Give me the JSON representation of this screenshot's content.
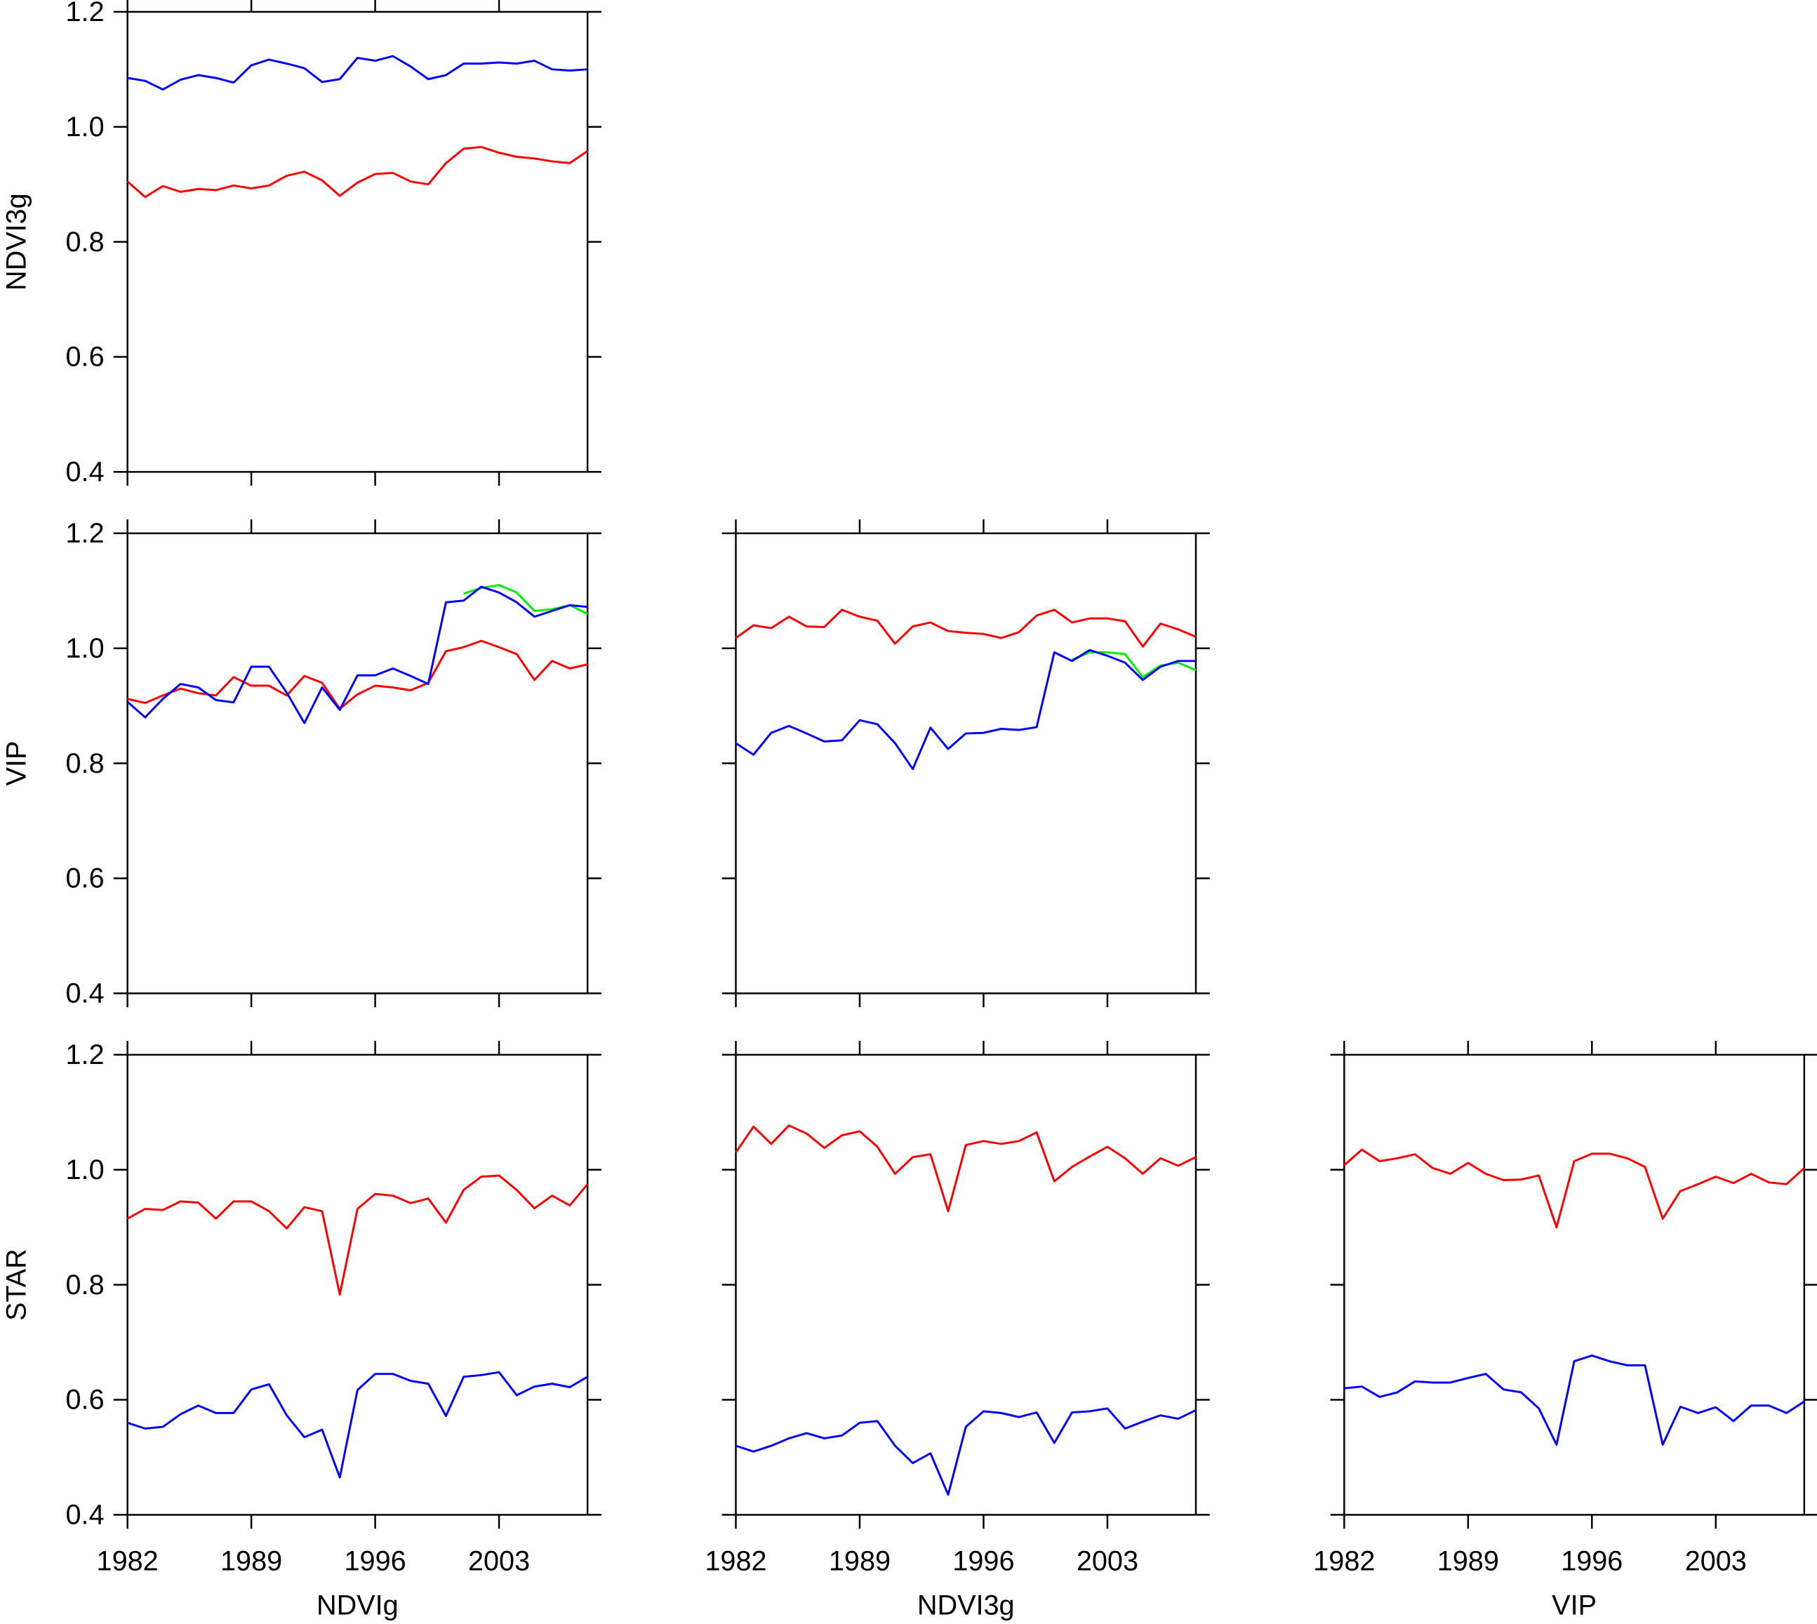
{
  "chart_data": [
    {
      "type": "line",
      "ylabel": "NDVI3g",
      "xtick_labels": false,
      "ytick_labels": true,
      "x": [
        1982,
        1983,
        1984,
        1985,
        1986,
        1987,
        1988,
        1989,
        1990,
        1991,
        1992,
        1993,
        1994,
        1995,
        1996,
        1997,
        1998,
        1999,
        2000,
        2001,
        2002,
        2003,
        2004,
        2005,
        2006,
        2007,
        2008
      ],
      "xlim": [
        1982,
        2008
      ],
      "xticks": [
        1982,
        1989,
        1996,
        2003
      ],
      "ylim": [
        0.4,
        1.2
      ],
      "yticks": [
        {
          "value": 0.4,
          "label": "0.4"
        },
        {
          "value": 0.6,
          "label": "0.6"
        },
        {
          "value": 0.8,
          "label": "0.8"
        },
        {
          "value": 1.0,
          "label": "1.0"
        },
        {
          "value": 1.2,
          "label": "1.2"
        }
      ],
      "series": [
        {
          "color": "#0000ff",
          "values": [
            1.085,
            1.08,
            1.065,
            1.082,
            1.09,
            1.085,
            1.077,
            1.107,
            1.117,
            1.11,
            1.102,
            1.078,
            1.083,
            1.12,
            1.115,
            1.123,
            1.105,
            1.083,
            1.09,
            1.11,
            1.11,
            1.112,
            1.11,
            1.115,
            1.1,
            1.098,
            1.1
          ]
        },
        {
          "color": "#ff0000",
          "values": [
            0.905,
            0.878,
            0.897,
            0.887,
            0.892,
            0.89,
            0.898,
            0.893,
            0.898,
            0.915,
            0.922,
            0.907,
            0.88,
            0.903,
            0.918,
            0.92,
            0.905,
            0.9,
            0.937,
            0.962,
            0.965,
            0.955,
            0.948,
            0.945,
            0.94,
            0.937,
            0.958
          ]
        }
      ]
    },
    {
      "type": "line",
      "ylabel": "VIP",
      "xtick_labels": false,
      "ytick_labels": true,
      "x": [
        1982,
        1983,
        1984,
        1985,
        1986,
        1987,
        1988,
        1989,
        1990,
        1991,
        1992,
        1993,
        1994,
        1995,
        1996,
        1997,
        1998,
        1999,
        2000,
        2001,
        2002,
        2003,
        2004,
        2005,
        2006,
        2007,
        2008
      ],
      "xlim": [
        1982,
        2008
      ],
      "xticks": [
        1982,
        1989,
        1996,
        2003
      ],
      "ylim": [
        0.4,
        1.2
      ],
      "yticks": [
        {
          "value": 0.4,
          "label": "0.4"
        },
        {
          "value": 0.6,
          "label": "0.6"
        },
        {
          "value": 0.8,
          "label": "0.8"
        },
        {
          "value": 1.0,
          "label": "1.0"
        },
        {
          "value": 1.2,
          "label": "1.2"
        }
      ],
      "series": [
        {
          "color": "#ff0000",
          "values": [
            0.912,
            0.905,
            0.918,
            0.93,
            0.922,
            0.918,
            0.95,
            0.935,
            0.935,
            0.918,
            0.952,
            0.94,
            0.895,
            0.92,
            0.935,
            0.932,
            0.927,
            0.94,
            0.995,
            1.002,
            1.013,
            1.002,
            0.99,
            0.945,
            0.978,
            0.965,
            0.972
          ]
        },
        {
          "color": "#00ee00",
          "values": [
            null,
            null,
            null,
            null,
            null,
            null,
            null,
            null,
            null,
            null,
            null,
            null,
            null,
            null,
            null,
            null,
            null,
            null,
            null,
            1.095,
            1.105,
            1.11,
            1.097,
            1.065,
            1.068,
            1.075,
            1.06
          ]
        },
        {
          "color": "#0000ff",
          "values": [
            0.907,
            0.88,
            0.912,
            0.938,
            0.932,
            0.91,
            0.906,
            0.968,
            0.968,
            0.923,
            0.87,
            0.932,
            0.893,
            0.953,
            0.953,
            0.965,
            0.952,
            0.938,
            1.08,
            1.083,
            1.107,
            1.097,
            1.08,
            1.055,
            1.065,
            1.075,
            1.072
          ]
        }
      ]
    },
    {
      "type": "line",
      "xtick_labels": false,
      "ytick_labels": false,
      "x": [
        1982,
        1983,
        1984,
        1985,
        1986,
        1987,
        1988,
        1989,
        1990,
        1991,
        1992,
        1993,
        1994,
        1995,
        1996,
        1997,
        1998,
        1999,
        2000,
        2001,
        2002,
        2003,
        2004,
        2005,
        2006,
        2007,
        2008
      ],
      "xlim": [
        1982,
        2008
      ],
      "xticks": [
        1982,
        1989,
        1996,
        2003
      ],
      "ylim": [
        0.4,
        1.2
      ],
      "yticks": [
        {
          "value": 0.4,
          "label": "0.4"
        },
        {
          "value": 0.6,
          "label": "0.6"
        },
        {
          "value": 0.8,
          "label": "0.8"
        },
        {
          "value": 1.0,
          "label": "1.0"
        },
        {
          "value": 1.2,
          "label": "1.2"
        }
      ],
      "series": [
        {
          "color": "#ff0000",
          "values": [
            1.018,
            1.04,
            1.035,
            1.055,
            1.038,
            1.037,
            1.067,
            1.055,
            1.048,
            1.008,
            1.038,
            1.045,
            1.03,
            1.027,
            1.025,
            1.018,
            1.028,
            1.057,
            1.067,
            1.045,
            1.052,
            1.052,
            1.047,
            1.003,
            1.043,
            1.033,
            1.02
          ]
        },
        {
          "color": "#00ee00",
          "values": [
            null,
            null,
            null,
            null,
            null,
            null,
            null,
            null,
            null,
            null,
            null,
            null,
            null,
            null,
            null,
            null,
            null,
            null,
            null,
            0.98,
            0.993,
            0.993,
            0.99,
            0.95,
            0.97,
            0.975,
            0.962
          ]
        },
        {
          "color": "#0000ff",
          "values": [
            0.835,
            0.815,
            0.853,
            0.865,
            0.852,
            0.838,
            0.84,
            0.875,
            0.868,
            0.835,
            0.79,
            0.862,
            0.825,
            0.852,
            0.853,
            0.86,
            0.858,
            0.863,
            0.993,
            0.978,
            0.997,
            0.987,
            0.975,
            0.945,
            0.968,
            0.978,
            0.978
          ]
        }
      ]
    },
    {
      "type": "line",
      "ylabel": "STAR",
      "xlabel": "NDVIg",
      "xtick_labels": true,
      "ytick_labels": true,
      "x": [
        1982,
        1983,
        1984,
        1985,
        1986,
        1987,
        1988,
        1989,
        1990,
        1991,
        1992,
        1993,
        1994,
        1995,
        1996,
        1997,
        1998,
        1999,
        2000,
        2001,
        2002,
        2003,
        2004,
        2005,
        2006,
        2007,
        2008
      ],
      "xlim": [
        1982,
        2008
      ],
      "xticks": [
        1982,
        1989,
        1996,
        2003
      ],
      "ylim": [
        0.4,
        1.2
      ],
      "yticks": [
        {
          "value": 0.4,
          "label": "0.4"
        },
        {
          "value": 0.6,
          "label": "0.6"
        },
        {
          "value": 0.8,
          "label": "0.8"
        },
        {
          "value": 1.0,
          "label": "1.0"
        },
        {
          "value": 1.2,
          "label": "1.2"
        }
      ],
      "series": [
        {
          "color": "#ff0000",
          "values": [
            0.915,
            0.932,
            0.93,
            0.945,
            0.943,
            0.915,
            0.945,
            0.945,
            0.928,
            0.898,
            0.935,
            0.928,
            0.783,
            0.932,
            0.958,
            0.955,
            0.942,
            0.95,
            0.908,
            0.965,
            0.988,
            0.99,
            0.965,
            0.933,
            0.955,
            0.938,
            0.975
          ]
        },
        {
          "color": "#0000ff",
          "values": [
            0.56,
            0.55,
            0.553,
            0.575,
            0.59,
            0.577,
            0.577,
            0.618,
            0.627,
            0.573,
            0.535,
            0.548,
            0.465,
            0.617,
            0.645,
            0.645,
            0.633,
            0.628,
            0.572,
            0.64,
            0.643,
            0.648,
            0.608,
            0.623,
            0.628,
            0.622,
            0.64
          ]
        }
      ]
    },
    {
      "type": "line",
      "xlabel": "NDVI3g",
      "xtick_labels": true,
      "ytick_labels": false,
      "x": [
        1982,
        1983,
        1984,
        1985,
        1986,
        1987,
        1988,
        1989,
        1990,
        1991,
        1992,
        1993,
        1994,
        1995,
        1996,
        1997,
        1998,
        1999,
        2000,
        2001,
        2002,
        2003,
        2004,
        2005,
        2006,
        2007,
        2008
      ],
      "xlim": [
        1982,
        2008
      ],
      "xticks": [
        1982,
        1989,
        1996,
        2003
      ],
      "ylim": [
        0.4,
        1.2
      ],
      "yticks": [
        {
          "value": 0.4,
          "label": "0.4"
        },
        {
          "value": 0.6,
          "label": "0.6"
        },
        {
          "value": 0.8,
          "label": "0.8"
        },
        {
          "value": 1.0,
          "label": "1.0"
        },
        {
          "value": 1.2,
          "label": "1.2"
        }
      ],
      "series": [
        {
          "color": "#ff0000",
          "values": [
            1.03,
            1.075,
            1.045,
            1.077,
            1.063,
            1.038,
            1.06,
            1.067,
            1.04,
            0.993,
            1.022,
            1.027,
            0.928,
            1.043,
            1.05,
            1.045,
            1.05,
            1.065,
            0.98,
            1.005,
            1.023,
            1.04,
            1.02,
            0.993,
            1.02,
            1.007,
            1.022
          ]
        },
        {
          "color": "#0000ff",
          "values": [
            0.52,
            0.51,
            0.52,
            0.533,
            0.542,
            0.533,
            0.538,
            0.56,
            0.563,
            0.52,
            0.49,
            0.507,
            0.435,
            0.553,
            0.58,
            0.577,
            0.57,
            0.578,
            0.525,
            0.578,
            0.58,
            0.585,
            0.55,
            0.562,
            0.573,
            0.567,
            0.582
          ]
        }
      ]
    },
    {
      "type": "line",
      "xlabel": "VIP",
      "xtick_labels": true,
      "ytick_labels": false,
      "x": [
        1982,
        1983,
        1984,
        1985,
        1986,
        1987,
        1988,
        1989,
        1990,
        1991,
        1992,
        1993,
        1994,
        1995,
        1996,
        1997,
        1998,
        1999,
        2000,
        2001,
        2002,
        2003,
        2004,
        2005,
        2006,
        2007,
        2008
      ],
      "xlim": [
        1982,
        2008
      ],
      "xticks": [
        1982,
        1989,
        1996,
        2003
      ],
      "ylim": [
        0.4,
        1.2
      ],
      "yticks": [
        {
          "value": 0.4,
          "label": "0.4"
        },
        {
          "value": 0.6,
          "label": "0.6"
        },
        {
          "value": 0.8,
          "label": "0.8"
        },
        {
          "value": 1.0,
          "label": "1.0"
        },
        {
          "value": 1.2,
          "label": "1.2"
        }
      ],
      "series": [
        {
          "color": "#ff0000",
          "values": [
            1.008,
            1.035,
            1.015,
            1.02,
            1.027,
            1.003,
            0.993,
            1.012,
            0.993,
            0.982,
            0.983,
            0.99,
            0.9,
            1.015,
            1.028,
            1.028,
            1.02,
            1.005,
            0.915,
            0.963,
            0.975,
            0.988,
            0.977,
            0.993,
            0.978,
            0.975,
            1.003
          ]
        },
        {
          "color": "#0000ff",
          "values": [
            0.62,
            0.623,
            0.605,
            0.613,
            0.632,
            0.63,
            0.63,
            0.638,
            0.645,
            0.618,
            0.613,
            0.585,
            0.522,
            0.667,
            0.677,
            0.667,
            0.66,
            0.66,
            0.522,
            0.588,
            0.577,
            0.587,
            0.563,
            0.59,
            0.59,
            0.577,
            0.597
          ]
        }
      ]
    }
  ]
}
